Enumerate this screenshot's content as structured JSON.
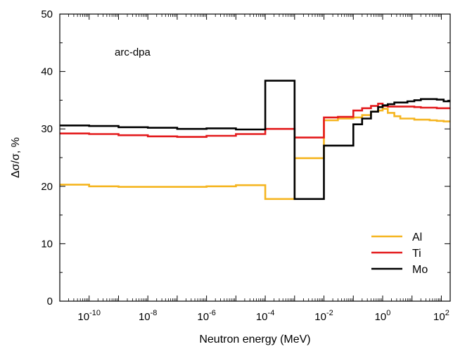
{
  "chart_data": {
    "type": "line",
    "step": true,
    "annotation": "arc-dpa",
    "xlabel": "Neutron energy (MeV)",
    "ylabel": "Δσ/σ, %",
    "x_scale": "log",
    "xlim": [
      1e-11,
      200
    ],
    "ylim": [
      0,
      50
    ],
    "grid": false,
    "legend_position": "bottom-right",
    "x_ticks": [
      {
        "value": 1e-10,
        "base": "10",
        "exp": "-10"
      },
      {
        "value": 1e-08,
        "base": "10",
        "exp": "-8"
      },
      {
        "value": 1e-06,
        "base": "10",
        "exp": "-6"
      },
      {
        "value": 0.0001,
        "base": "10",
        "exp": "-4"
      },
      {
        "value": 0.01,
        "base": "10",
        "exp": "-2"
      },
      {
        "value": 1,
        "base": "10",
        "exp": "0"
      },
      {
        "value": 100,
        "base": "10",
        "exp": "2"
      }
    ],
    "y_ticks": [
      "0",
      "10",
      "20",
      "30",
      "40",
      "50"
    ],
    "series": [
      {
        "name": "Al",
        "color": "#f5b520",
        "edges": [
          1e-11,
          1e-10,
          1e-09,
          1e-08,
          1e-07,
          1e-06,
          1e-05,
          0.0001,
          0.001,
          0.01,
          0.03,
          0.1,
          0.2,
          0.4,
          0.7,
          1.0,
          1.5,
          2.5,
          4,
          7,
          12,
          20,
          40,
          70,
          120,
          200
        ],
        "values": [
          20.3,
          20.0,
          19.9,
          19.9,
          19.9,
          20.0,
          20.2,
          17.8,
          24.9,
          31.5,
          31.8,
          32.0,
          32.4,
          33.0,
          33.2,
          33.5,
          32.8,
          32.2,
          31.8,
          31.8,
          31.6,
          31.6,
          31.5,
          31.4,
          31.3
        ]
      },
      {
        "name": "Ti",
        "color": "#e31a1c",
        "edges": [
          1e-11,
          1e-10,
          1e-09,
          1e-08,
          1e-07,
          1e-06,
          1e-05,
          0.0001,
          0.001,
          0.01,
          0.03,
          0.1,
          0.2,
          0.4,
          0.7,
          1.0,
          1.5,
          2.5,
          4,
          7,
          12,
          20,
          40,
          70,
          120,
          200
        ],
        "values": [
          29.2,
          29.1,
          28.9,
          28.7,
          28.6,
          28.8,
          29.1,
          30.0,
          28.5,
          32.0,
          32.1,
          33.2,
          33.6,
          34.0,
          34.4,
          34.0,
          33.9,
          33.9,
          33.9,
          33.9,
          33.8,
          33.7,
          33.7,
          33.6,
          33.6
        ]
      },
      {
        "name": "Mo",
        "color": "#000000",
        "edges": [
          1e-11,
          1e-10,
          1e-09,
          1e-08,
          1e-07,
          1e-06,
          1e-05,
          0.0001,
          0.001,
          0.01,
          0.03,
          0.1,
          0.2,
          0.4,
          0.7,
          1.0,
          1.5,
          2.5,
          4,
          7,
          12,
          20,
          40,
          70,
          120,
          200
        ],
        "values": [
          30.6,
          30.5,
          30.3,
          30.2,
          30.0,
          30.1,
          29.9,
          38.4,
          17.8,
          27.1,
          27.1,
          30.8,
          31.8,
          33.0,
          33.8,
          34.1,
          34.3,
          34.6,
          34.6,
          34.8,
          35.0,
          35.2,
          35.2,
          35.1,
          34.8
        ]
      }
    ]
  }
}
